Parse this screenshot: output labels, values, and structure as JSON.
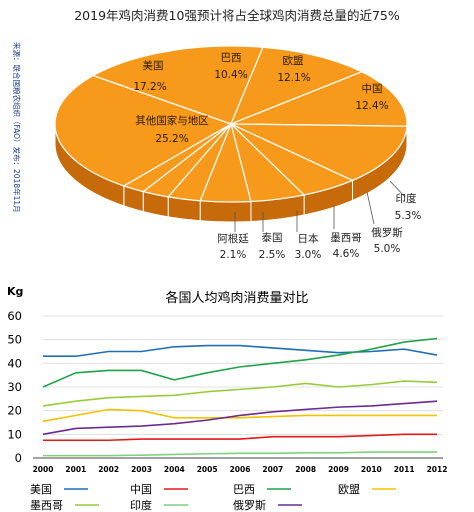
{
  "chart_data": [
    {
      "type": "pie",
      "title": "2019年鸡肉消费10强预计将占全球鸡肉消费总量的近75%",
      "source": "来源：联合国粮农组织（FAO）发布：2018年11月",
      "slices": [
        {
          "label": "美国",
          "value": 17.2,
          "value_label": "17.2%"
        },
        {
          "label": "巴西",
          "value": 10.4,
          "value_label": "10.4%"
        },
        {
          "label": "欧盟",
          "value": 12.1,
          "value_label": "12.1%"
        },
        {
          "label": "中国",
          "value": 12.4,
          "value_label": "12.4%"
        },
        {
          "label": "印度",
          "value": 5.3,
          "value_label": "5.3%"
        },
        {
          "label": "俄罗斯",
          "value": 5.0,
          "value_label": "5.0%"
        },
        {
          "label": "墨西哥",
          "value": 4.6,
          "value_label": "4.6%"
        },
        {
          "label": "日本",
          "value": 3.0,
          "value_label": "3.0%"
        },
        {
          "label": "泰国",
          "value": 2.5,
          "value_label": "2.5%"
        },
        {
          "label": "阿根廷",
          "value": 2.1,
          "value_label": "2.1%"
        },
        {
          "label": "其他国家与地区",
          "value": 25.2,
          "value_label": "25.2%"
        }
      ],
      "colors": {
        "top": "#f79a1c",
        "side": "#c66a0a",
        "edge": "#ffffff"
      }
    },
    {
      "type": "line",
      "title": "各国人均鸡肉消费量对比",
      "ylabel": "Kg",
      "ylim": [
        0,
        60
      ],
      "yticks": [
        0,
        10,
        20,
        30,
        40,
        50,
        60
      ],
      "x": [
        "2000",
        "2001",
        "2002",
        "2003",
        "2004",
        "2005",
        "2006",
        "2007",
        "2008",
        "2009",
        "2010",
        "2011",
        "2012"
      ],
      "series": [
        {
          "name": "美国",
          "color": "#1f6fb5",
          "values": [
            43,
            43,
            45,
            45,
            47,
            47.5,
            47.5,
            46.5,
            45.5,
            44.5,
            45,
            46,
            43.5
          ]
        },
        {
          "name": "中国",
          "color": "#e31a1c",
          "values": [
            7.5,
            7.5,
            7.5,
            8,
            8,
            8,
            8,
            9,
            9,
            9,
            9.5,
            10,
            10
          ]
        },
        {
          "name": "巴西",
          "color": "#1ea34a",
          "values": [
            30,
            36,
            37,
            37,
            33,
            36,
            38.5,
            40,
            41.5,
            43.5,
            46,
            49,
            50.5
          ]
        },
        {
          "name": "欧盟",
          "color": "#f5c200",
          "values": [
            15.5,
            18,
            20.5,
            20,
            17,
            17,
            17,
            17.5,
            18,
            18,
            18,
            18,
            18
          ]
        },
        {
          "name": "墨西哥",
          "color": "#9acb3c",
          "values": [
            22,
            24,
            25.5,
            26,
            26.5,
            28,
            29,
            30,
            31.5,
            30,
            31,
            32.5,
            32
          ]
        },
        {
          "name": "印度",
          "color": "#7fd17f",
          "values": [
            1,
            1,
            1,
            1.2,
            1.5,
            1.8,
            2,
            2,
            2.2,
            2.2,
            2.5,
            2.5,
            2.5
          ]
        },
        {
          "name": "俄罗斯",
          "color": "#6a2c91",
          "values": [
            10,
            12.5,
            13,
            13.5,
            14.5,
            16,
            18,
            19.5,
            20.5,
            21.5,
            22,
            23,
            24
          ]
        }
      ]
    }
  ]
}
